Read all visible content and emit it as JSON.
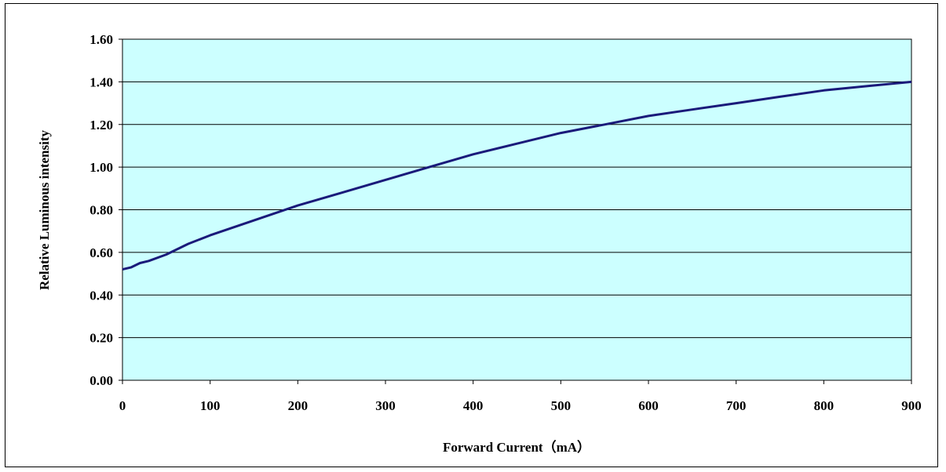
{
  "chart_data": {
    "type": "line",
    "title": "",
    "xlabel": "Forward Current（mA）",
    "ylabel": "Relative Luminous intensity",
    "xlim": [
      0,
      900
    ],
    "ylim": [
      0,
      1.6
    ],
    "x_ticks": [
      "0",
      "100",
      "200",
      "300",
      "400",
      "500",
      "600",
      "700",
      "800",
      "900"
    ],
    "y_ticks": [
      "0.00",
      "0.20",
      "0.40",
      "0.60",
      "0.80",
      "1.00",
      "1.20",
      "1.40",
      "1.60"
    ],
    "grid": "horizontal",
    "legend": "none",
    "plot_background": "#ccffff",
    "line_color": "#1a1a7a",
    "series": [
      {
        "x": [
          0,
          10,
          20,
          30,
          50,
          75,
          100,
          150,
          200,
          250,
          300,
          350,
          400,
          450,
          500,
          550,
          600,
          650,
          700,
          750,
          800,
          850,
          900
        ],
        "y": [
          0.52,
          0.53,
          0.55,
          0.56,
          0.59,
          0.64,
          0.68,
          0.75,
          0.82,
          0.88,
          0.94,
          1.0,
          1.06,
          1.11,
          1.16,
          1.2,
          1.24,
          1.27,
          1.3,
          1.33,
          1.36,
          1.38,
          1.4
        ]
      }
    ]
  }
}
